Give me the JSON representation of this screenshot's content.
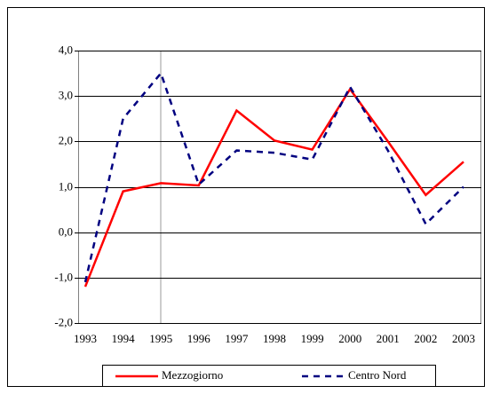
{
  "chart_data": {
    "type": "line",
    "categories": [
      "1993",
      "1994",
      "1995",
      "1996",
      "1997",
      "1998",
      "1999",
      "2000",
      "2001",
      "2002",
      "2003"
    ],
    "series": [
      {
        "name": "Mezzogiorno",
        "color": "#ff0000",
        "values": [
          -1.2,
          0.9,
          1.08,
          1.03,
          2.68,
          2.02,
          1.82,
          3.15,
          2.0,
          0.82,
          1.55
        ]
      },
      {
        "name": "Centro Nord",
        "color": "#000080",
        "values": [
          -1.1,
          2.5,
          3.5,
          1.05,
          1.8,
          1.75,
          1.6,
          3.2,
          1.8,
          0.18,
          1.0
        ]
      }
    ],
    "ylim": [
      -2,
      4
    ],
    "yticks": [
      {
        "value": -2,
        "label": "-2,0"
      },
      {
        "value": -1,
        "label": "-1,0"
      },
      {
        "value": 0,
        "label": "0,0"
      },
      {
        "value": 1,
        "label": "1,0"
      },
      {
        "value": 2,
        "label": "2,0"
      },
      {
        "value": 3,
        "label": "3,0"
      },
      {
        "value": 4,
        "label": "4,0"
      }
    ],
    "grid": true,
    "legend": "bottom"
  }
}
